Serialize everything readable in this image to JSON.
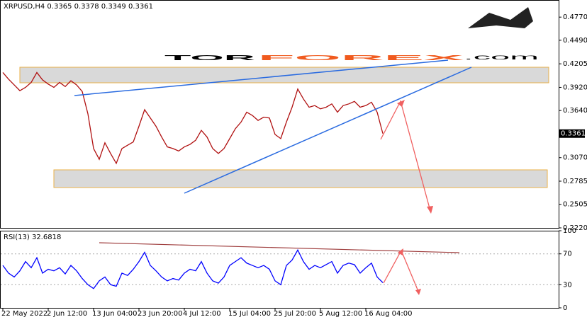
{
  "chart_data": [
    {
      "type": "line",
      "title": "XRPUSD,H4 0.3365 0.3378 0.3349 0.3361",
      "color": "#b01010",
      "categories": [
        "22 May 2022",
        null,
        null,
        null,
        null,
        null,
        null,
        null,
        "2 Jun 12:00",
        null,
        null,
        null,
        null,
        null,
        null,
        null,
        "13 Jun 04:00",
        null,
        null,
        null,
        null,
        null,
        null,
        null,
        "23 Jun 20:00",
        null,
        null,
        null,
        null,
        null,
        null,
        null,
        "4 Jul 12:00",
        null,
        null,
        null,
        null,
        null,
        null,
        null,
        "15 Jul 04:00",
        null,
        null,
        null,
        null,
        null,
        null,
        null,
        "25 Jul 20:00",
        null,
        null,
        null,
        null,
        null,
        null,
        null,
        "5 Aug 12:00",
        null,
        null,
        null,
        null,
        null,
        null,
        null,
        "16 Aug 04:00",
        null,
        null,
        null
      ],
      "values": [
        0.41,
        0.402,
        0.395,
        0.388,
        0.392,
        0.398,
        0.41,
        0.401,
        0.396,
        0.392,
        0.398,
        0.393,
        0.4,
        0.395,
        0.387,
        0.36,
        0.318,
        0.305,
        0.325,
        0.312,
        0.3,
        0.318,
        0.322,
        0.326,
        0.345,
        0.365,
        0.355,
        0.345,
        0.332,
        0.32,
        0.318,
        0.315,
        0.32,
        0.323,
        0.328,
        0.34,
        0.332,
        0.318,
        0.312,
        0.318,
        0.33,
        0.342,
        0.35,
        0.362,
        0.358,
        0.352,
        0.356,
        0.355,
        0.335,
        0.33,
        0.35,
        0.368,
        0.39,
        0.378,
        0.368,
        0.37,
        0.366,
        0.368,
        0.372,
        0.362,
        0.37,
        0.372,
        0.375,
        0.368,
        0.37,
        0.374,
        0.362,
        0.3361
      ],
      "ylim": [
        0.222,
        0.496
      ],
      "yticks": [
        {
          "value": 0.477,
          "label": "0.4770"
        },
        {
          "value": 0.449,
          "label": "0.4490"
        },
        {
          "value": 0.4205,
          "label": "0.4205"
        },
        {
          "value": 0.392,
          "label": "0.3920"
        },
        {
          "value": 0.364,
          "label": "0.3640"
        },
        {
          "value": 0.307,
          "label": "0.3070"
        },
        {
          "value": 0.2785,
          "label": "0.2785"
        },
        {
          "value": 0.2505,
          "label": "0.2505"
        },
        {
          "value": 0.222,
          "label": "0.2220"
        }
      ]
    },
    {
      "type": "line",
      "title": "RSI(13) 32.6818",
      "color": "#0000ff",
      "values": [
        55,
        45,
        40,
        48,
        60,
        52,
        65,
        45,
        50,
        48,
        52,
        44,
        55,
        48,
        38,
        30,
        25,
        35,
        40,
        30,
        28,
        45,
        42,
        50,
        60,
        72,
        55,
        48,
        40,
        35,
        38,
        36,
        45,
        50,
        48,
        60,
        45,
        35,
        32,
        40,
        55,
        60,
        65,
        58,
        55,
        52,
        55,
        50,
        35,
        30,
        55,
        62,
        75,
        60,
        50,
        55,
        52,
        56,
        60,
        45,
        55,
        58,
        56,
        45,
        52,
        58,
        40,
        32.6818
      ],
      "ylim": [
        0,
        100
      ],
      "yticks": [
        0,
        30,
        70,
        100
      ]
    }
  ],
  "logo": {
    "part1": "TOR",
    "part2": "FOREX",
    "part3": ".com"
  }
}
